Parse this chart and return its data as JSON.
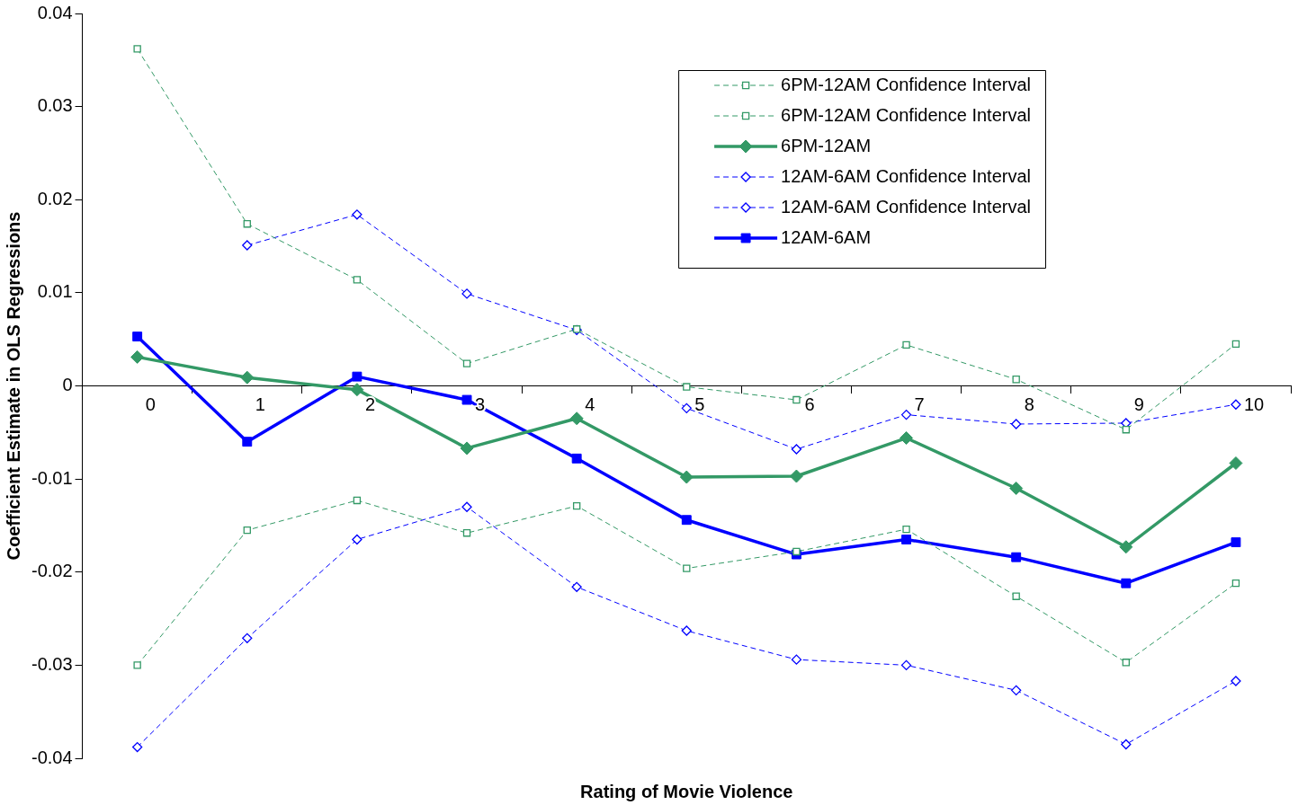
{
  "chart_data": {
    "type": "line",
    "xlabel": "Rating of Movie Violence",
    "ylabel": "Coefficient Estimate in OLS Regressions",
    "categories": [
      "0",
      "1",
      "2",
      "3",
      "4",
      "5",
      "6",
      "7",
      "8",
      "9",
      "10"
    ],
    "ylim": [
      -0.04,
      0.04
    ],
    "yticks": [
      -0.04,
      -0.03,
      -0.02,
      -0.01,
      0,
      0.01,
      0.02,
      0.03,
      0.04
    ],
    "grid": false,
    "legend": "top right",
    "series": [
      {
        "name": "6PM-12AM Confidence Interval",
        "color": "#339966",
        "marker": "square",
        "line_style": "dashed",
        "values": [
          0.0362,
          0.0174,
          0.0114,
          0.0024,
          0.0061,
          -0.0001,
          -0.0015,
          0.0044,
          0.0007,
          -0.0047,
          0.0045
        ]
      },
      {
        "name": "6PM-12AM Confidence Interval",
        "color": "#339966",
        "marker": "square",
        "line_style": "dashed",
        "values": [
          -0.03,
          -0.0155,
          -0.0123,
          -0.0158,
          -0.0129,
          -0.0196,
          -0.0178,
          -0.0154,
          -0.0226,
          -0.0297,
          -0.0212
        ]
      },
      {
        "name": "6PM-12AM",
        "color": "#339966",
        "marker": "diamond",
        "line_style": "solid",
        "values": [
          0.0031,
          0.0009,
          -0.0004,
          -0.0067,
          -0.0035,
          -0.0098,
          -0.0097,
          -0.0056,
          -0.011,
          -0.0173,
          -0.0083
        ]
      },
      {
        "name": "12AM-6AM Confidence Interval",
        "color": "#0000ff",
        "marker": "diamond",
        "line_style": "dashed",
        "values": [
          null,
          0.0151,
          0.0184,
          0.0099,
          0.006,
          -0.0024,
          -0.0068,
          -0.0031,
          -0.0041,
          -0.004,
          -0.002
        ]
      },
      {
        "name": "12AM-6AM Confidence Interval",
        "color": "#0000ff",
        "marker": "diamond",
        "line_style": "dashed",
        "values": [
          -0.0388,
          -0.0271,
          -0.0165,
          -0.013,
          -0.0216,
          -0.0263,
          -0.0294,
          -0.03,
          -0.0327,
          -0.0385,
          -0.0317
        ]
      },
      {
        "name": "12AM-6AM",
        "color": "#0000ff",
        "marker": "square",
        "line_style": "solid",
        "values": [
          0.0053,
          -0.006,
          0.001,
          -0.0015,
          -0.0078,
          -0.0144,
          -0.0181,
          -0.0165,
          -0.0184,
          -0.0212,
          -0.0168
        ]
      }
    ]
  }
}
